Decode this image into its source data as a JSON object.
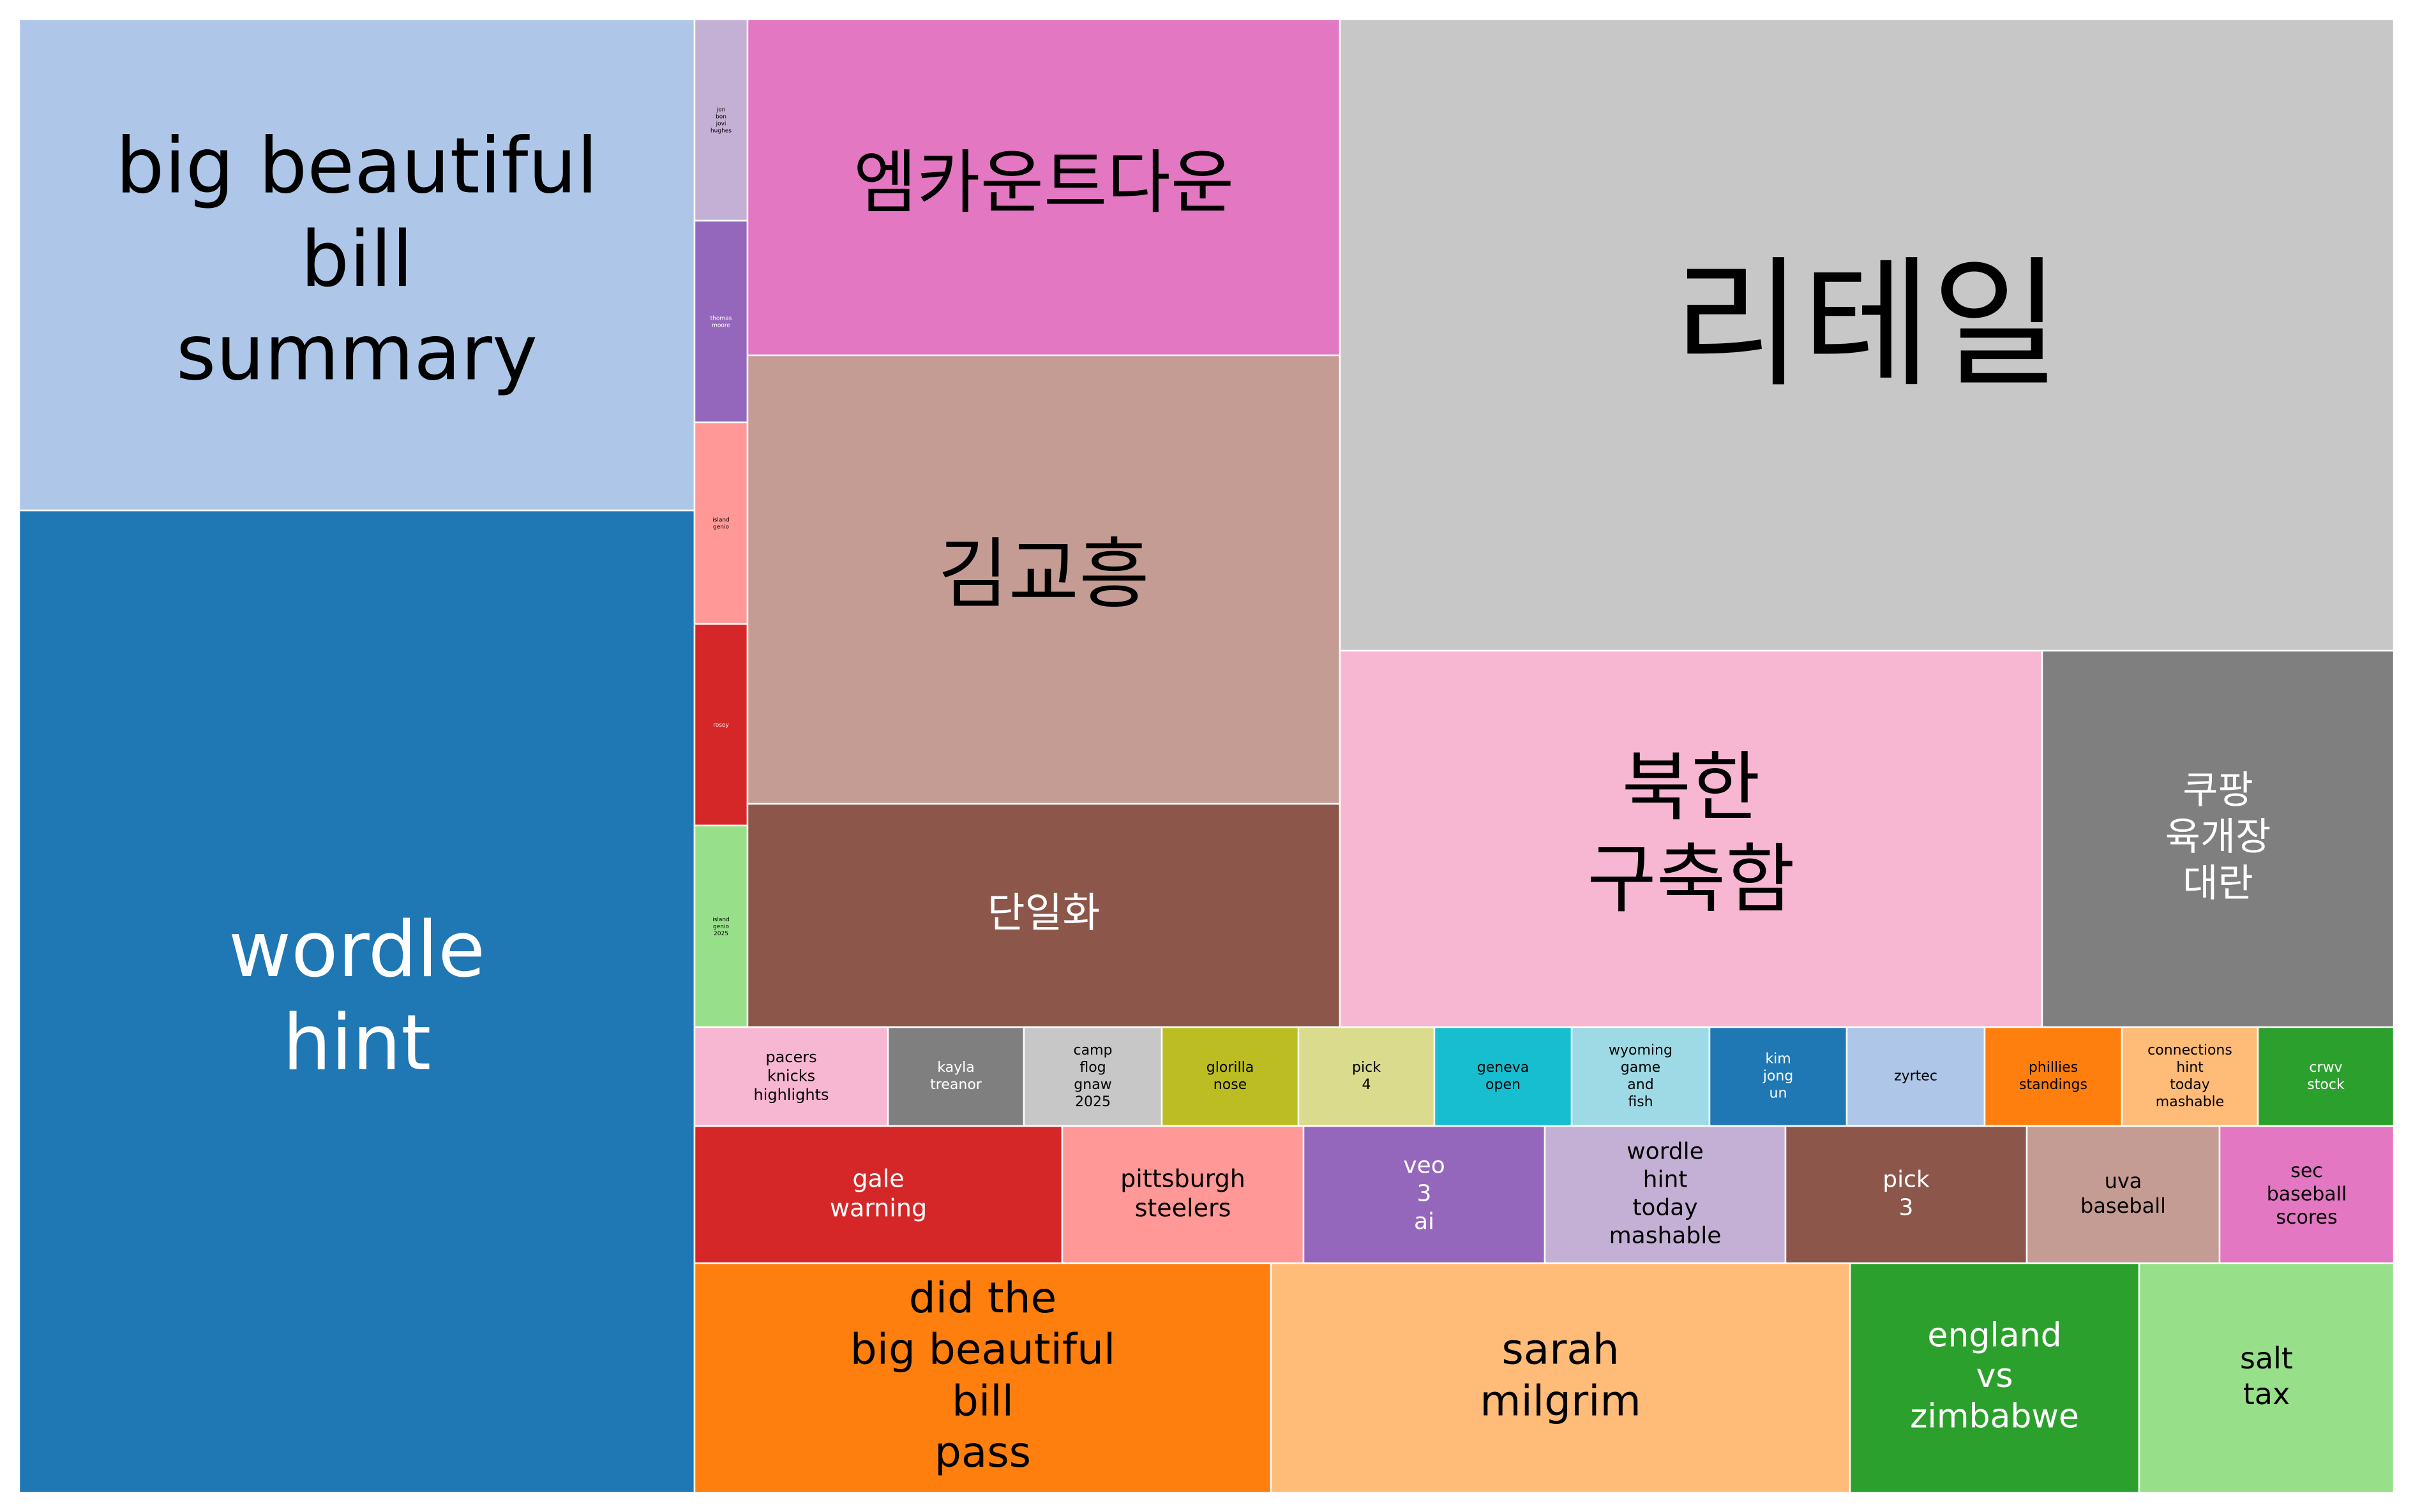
{
  "chart_data": {
    "type": "treemap",
    "title": "",
    "items": [
      {
        "label": "wordle hint",
        "lines": [
          "wordle",
          "hint"
        ],
        "color": "#1f77b4",
        "text_color": "#ffffff"
      },
      {
        "label": "big beautiful bill summary",
        "lines": [
          "big beautiful",
          "bill",
          "summary"
        ],
        "color": "#aec7e8",
        "text_color": "#000000"
      },
      {
        "label": "jon bon jovi hughes",
        "lines": [
          "jon",
          "bon",
          "jovi",
          "hughes"
        ],
        "color": "#c5b0d5",
        "text_color": "#000000"
      },
      {
        "label": "thomas moore",
        "lines": [
          "thomas",
          "moore"
        ],
        "color": "#9467bd",
        "text_color": "#ffffff"
      },
      {
        "label": "island genio",
        "lines": [
          "island",
          "genio"
        ],
        "color": "#ff9896",
        "text_color": "#000000"
      },
      {
        "label": "rosey",
        "lines": [
          "rosey"
        ],
        "color": "#d62728",
        "text_color": "#ffffff"
      },
      {
        "label": "island genio 2025",
        "lines": [
          "island",
          "genio",
          "2025"
        ],
        "color": "#98df8a",
        "text_color": "#000000"
      },
      {
        "label": "엠카운트다운",
        "lines": [
          "엠카운트다운"
        ],
        "color": "#e377c2",
        "text_color": "#000000"
      },
      {
        "label": "김교흥",
        "lines": [
          "김교흥"
        ],
        "color": "#c49c94",
        "text_color": "#000000"
      },
      {
        "label": "단일화",
        "lines": [
          "단일화"
        ],
        "color": "#8c564b",
        "text_color": "#ffffff"
      },
      {
        "label": "리테일",
        "lines": [
          "리테일"
        ],
        "color": "#c7c7c7",
        "text_color": "#000000"
      },
      {
        "label": "북한 구축함",
        "lines": [
          "북한",
          "구축함"
        ],
        "color": "#f7b6d2",
        "text_color": "#000000"
      },
      {
        "label": "쿠팡 육개장 대란",
        "lines": [
          "쿠팡",
          "육개장",
          "대란"
        ],
        "color": "#7f7f7f",
        "text_color": "#ffffff"
      },
      {
        "label": "pacers knicks highlights",
        "lines": [
          "pacers",
          "knicks",
          "highlights"
        ],
        "color": "#f7b6d2",
        "text_color": "#000000"
      },
      {
        "label": "kayla treanor",
        "lines": [
          "kayla",
          "treanor"
        ],
        "color": "#7f7f7f",
        "text_color": "#ffffff"
      },
      {
        "label": "camp flog gnaw 2025",
        "lines": [
          "camp",
          "flog",
          "gnaw",
          "2025"
        ],
        "color": "#c7c7c7",
        "text_color": "#000000"
      },
      {
        "label": "glorilla nose",
        "lines": [
          "glorilla",
          "nose"
        ],
        "color": "#bcbd22",
        "text_color": "#000000"
      },
      {
        "label": "pick 4",
        "lines": [
          "pick",
          "4"
        ],
        "color": "#dbdb8d",
        "text_color": "#000000"
      },
      {
        "label": "geneva open",
        "lines": [
          "geneva",
          "open"
        ],
        "color": "#17becf",
        "text_color": "#000000"
      },
      {
        "label": "wyoming game and fish",
        "lines": [
          "wyoming",
          "game",
          "and",
          "fish"
        ],
        "color": "#9edae5",
        "text_color": "#000000"
      },
      {
        "label": "kim jong un",
        "lines": [
          "kim",
          "jong",
          "un"
        ],
        "color": "#1f77b4",
        "text_color": "#ffffff"
      },
      {
        "label": "zyrtec",
        "lines": [
          "zyrtec"
        ],
        "color": "#aec7e8",
        "text_color": "#000000"
      },
      {
        "label": "phillies standings",
        "lines": [
          "phillies",
          "standings"
        ],
        "color": "#ff7f0e",
        "text_color": "#000000"
      },
      {
        "label": "connections hint today mashable",
        "lines": [
          "connections",
          "hint",
          "today",
          "mashable"
        ],
        "color": "#ffbb78",
        "text_color": "#000000"
      },
      {
        "label": "crwv stock",
        "lines": [
          "crwv",
          "stock"
        ],
        "color": "#2ca02c",
        "text_color": "#ffffff"
      },
      {
        "label": "gale warning",
        "lines": [
          "gale",
          "warning"
        ],
        "color": "#d62728",
        "text_color": "#ffffff"
      },
      {
        "label": "pittsburgh steelers",
        "lines": [
          "pittsburgh",
          "steelers"
        ],
        "color": "#ff9896",
        "text_color": "#000000"
      },
      {
        "label": "veo 3 ai",
        "lines": [
          "veo",
          "3",
          "ai"
        ],
        "color": "#9467bd",
        "text_color": "#ffffff"
      },
      {
        "label": "wordle hint today mashable",
        "lines": [
          "wordle",
          "hint",
          "today",
          "mashable"
        ],
        "color": "#c5b0d5",
        "text_color": "#000000"
      },
      {
        "label": "pick 3",
        "lines": [
          "pick",
          "3"
        ],
        "color": "#8c564b",
        "text_color": "#ffffff"
      },
      {
        "label": "uva baseball",
        "lines": [
          "uva",
          "baseball"
        ],
        "color": "#c49c94",
        "text_color": "#000000"
      },
      {
        "label": "sec baseball scores",
        "lines": [
          "sec",
          "baseball",
          "scores"
        ],
        "color": "#e377c2",
        "text_color": "#000000"
      },
      {
        "label": "did the big beautiful bill pass",
        "lines": [
          "did the",
          "big beautiful",
          "bill",
          "pass"
        ],
        "color": "#ff7f0e",
        "text_color": "#000000"
      },
      {
        "label": "sarah milgrim",
        "lines": [
          "sarah",
          "milgrim"
        ],
        "color": "#ffbb78",
        "text_color": "#000000"
      },
      {
        "label": "england vs zimbabwe",
        "lines": [
          "england",
          "vs",
          "zimbabwe"
        ],
        "color": "#2ca02c",
        "text_color": "#ffffff"
      },
      {
        "label": "salt tax",
        "lines": [
          "salt",
          "tax"
        ],
        "color": "#98df8a",
        "text_color": "#000000"
      }
    ]
  }
}
